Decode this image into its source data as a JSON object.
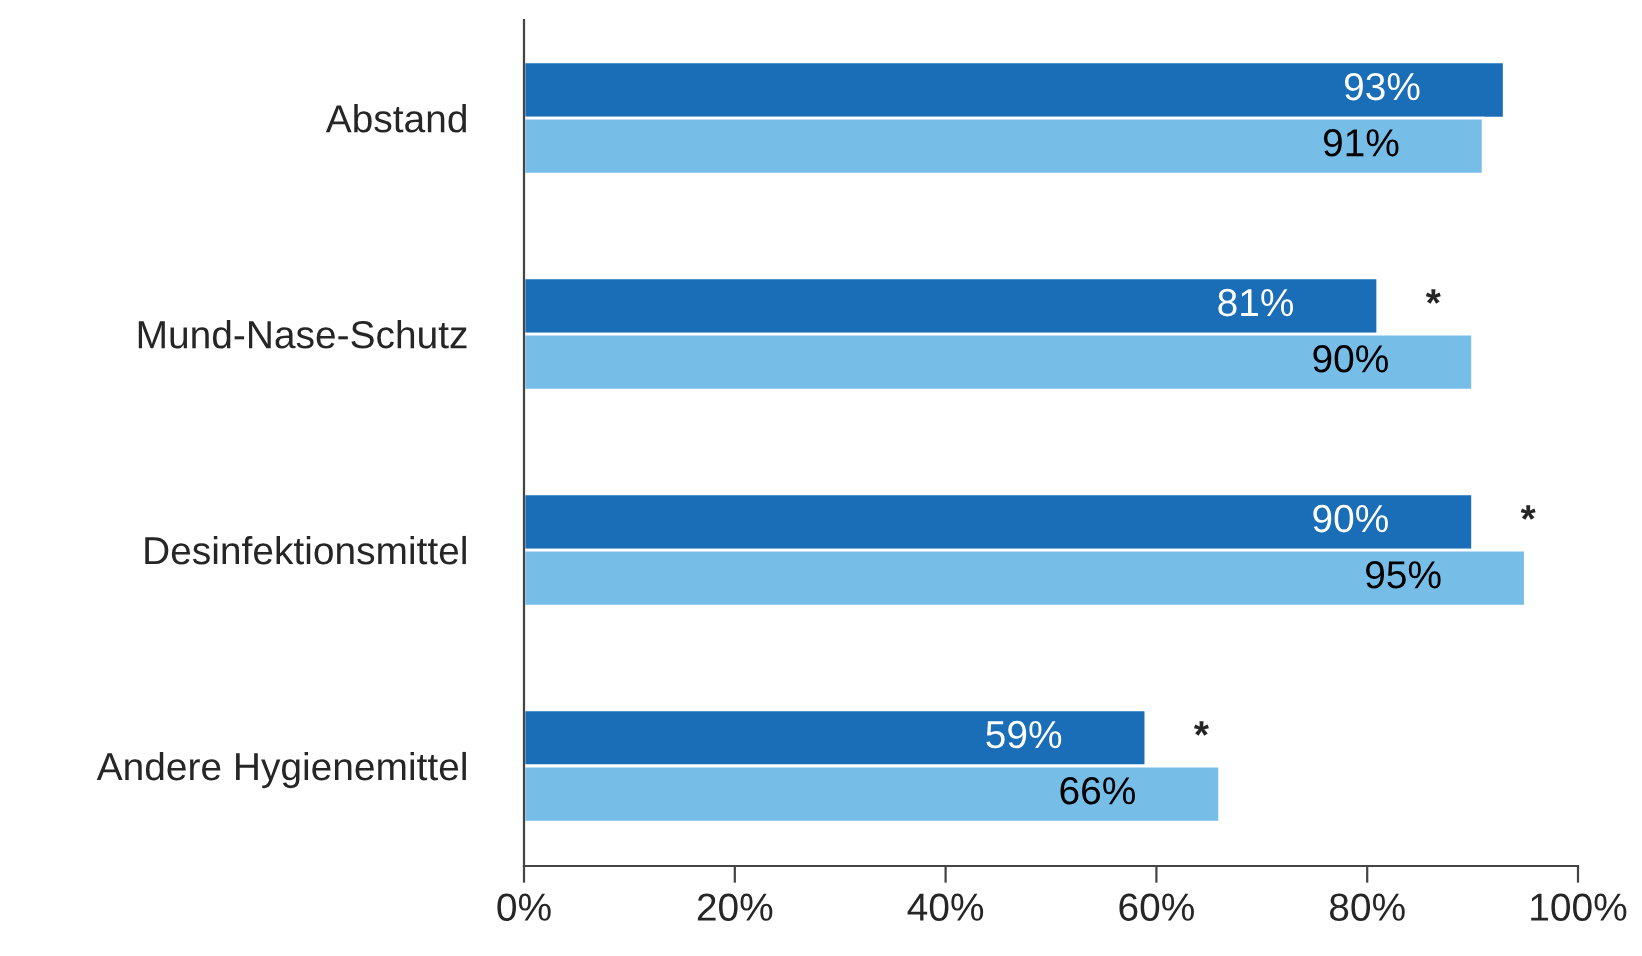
{
  "chart_data": {
    "type": "bar",
    "orientation": "horizontal",
    "categories": [
      "Abstand",
      "Mund-Nase-Schutz",
      "Desinfektionsmittel",
      "Andere Hygienemittel"
    ],
    "series": [
      {
        "color": "#1a6eb8",
        "values": [
          93,
          81,
          90,
          59
        ],
        "value_labels": [
          "93%",
          "81%",
          "90%",
          "59%"
        ]
      },
      {
        "color": "#76bde8",
        "values": [
          91,
          90,
          95,
          66
        ],
        "value_labels": [
          "91%",
          "90%",
          "95%",
          "66%"
        ]
      }
    ],
    "xlim": [
      0,
      100
    ],
    "xticks": [
      {
        "value": 0,
        "label": "0%"
      },
      {
        "value": 20,
        "label": "20%"
      },
      {
        "value": 40,
        "label": "40%"
      },
      {
        "value": 60,
        "label": "60%"
      },
      {
        "value": 80,
        "label": "80%"
      },
      {
        "value": 100,
        "label": "100%"
      }
    ],
    "annotations": [
      {
        "text": "*",
        "x": 81,
        "y": "Mund-Nase-Schutz"
      },
      {
        "text": "*",
        "x": 90,
        "y": "Desinfektionsmittel"
      },
      {
        "text": "*",
        "x": 59,
        "y": "Andere Hygienemittel"
      }
    ],
    "grid": false
  }
}
